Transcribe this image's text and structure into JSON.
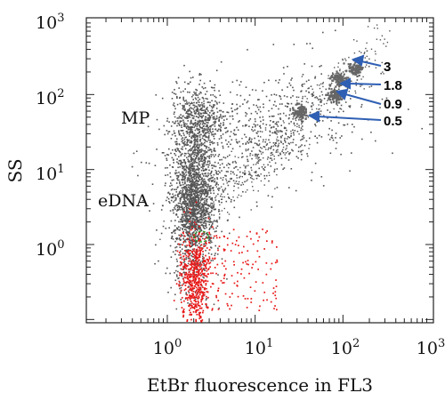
{
  "chart_data": {
    "type": "scatter",
    "xlabel": "EtBr fluorescence in FL3",
    "ylabel": "SS",
    "xscale": "log",
    "yscale": "log",
    "xlim": [
      0.1,
      1000
    ],
    "ylim": [
      0.1,
      1000
    ],
    "x_tick_labels": [
      {
        "base": "10",
        "exp": "0"
      },
      {
        "base": "10",
        "exp": "1"
      },
      {
        "base": "10",
        "exp": "2"
      },
      {
        "base": "10",
        "exp": "3"
      }
    ],
    "y_tick_labels": [
      {
        "base": "10",
        "exp": "0"
      },
      {
        "base": "10",
        "exp": "1"
      },
      {
        "base": "10",
        "exp": "2"
      },
      {
        "base": "10",
        "exp": "3"
      }
    ],
    "grid": false,
    "annotations": {
      "mp": "MP",
      "edna": "eDNA",
      "bead_3": "3",
      "bead_1_8": "1.8",
      "bead_0_9": "0.9",
      "bead_0_5": "0.5"
    },
    "colors": {
      "gray_points": "#555555",
      "red_points": "#e81818",
      "arrows": "#2f5fb3",
      "gate": "#2aa02a"
    },
    "series": [
      {
        "color": "gray",
        "clusters": [
          {
            "x": 2.0,
            "y": 4.0,
            "count": 1500
          },
          {
            "x": 2.2,
            "y": 40.0,
            "count": 650
          },
          {
            "x": 7.0,
            "y": 22.0,
            "count": 500
          },
          {
            "x": 1.8,
            "y": 0.5,
            "count": 180
          },
          {
            "x": 30.0,
            "y": 50.0,
            "count": 220
          }
        ]
      },
      {
        "color": "gray",
        "beads": [
          {
            "size": 0.5,
            "x": 33,
            "y": 60
          },
          {
            "size": 0.9,
            "x": 80,
            "y": 98
          },
          {
            "size": 1.8,
            "x": 90,
            "y": 160
          },
          {
            "size": 3,
            "x": 140,
            "y": 220
          }
        ]
      },
      {
        "color": "red",
        "region": {
          "x": [
            1.3,
            18
          ],
          "y": [
            0.13,
            1.6
          ]
        },
        "count": 700
      }
    ]
  }
}
